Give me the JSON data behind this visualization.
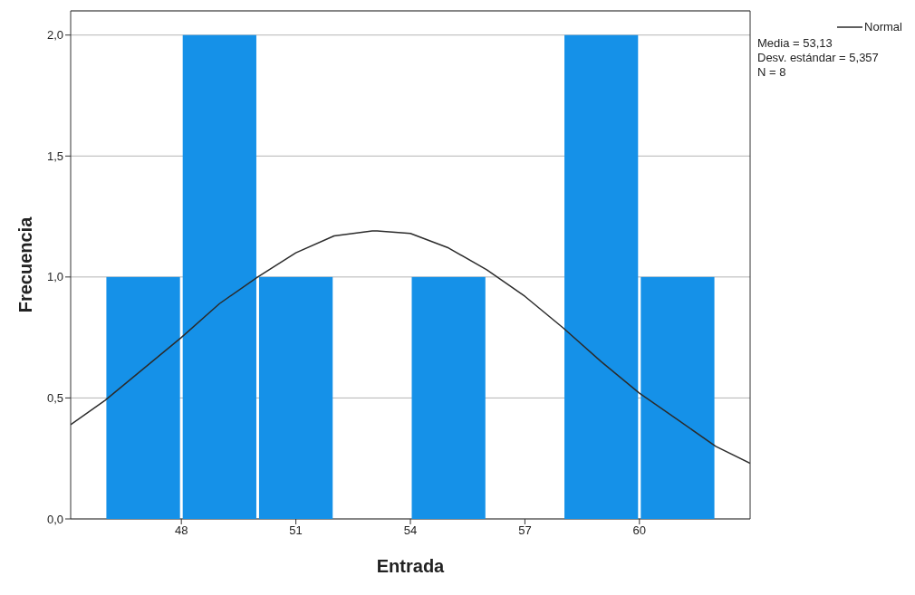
{
  "chart_data": {
    "type": "histogram",
    "xlabel": "Entrada",
    "ylabel": "Frecuencia",
    "bins": [
      46,
      48,
      50,
      52,
      54,
      56,
      58,
      60,
      62
    ],
    "values": [
      1,
      2,
      1,
      0,
      1,
      0,
      2,
      1
    ],
    "color": "#1591e8",
    "series": [
      {
        "name": "Normal",
        "type": "line",
        "color": "#2b2b2b",
        "x": [
          45.1,
          46,
          47,
          48,
          49,
          50,
          51,
          52,
          53,
          53.13,
          54,
          55,
          56,
          57,
          58,
          59,
          60,
          61,
          62,
          62.9
        ],
        "values": [
          0.39,
          0.49,
          0.62,
          0.75,
          0.89,
          1.0,
          1.1,
          1.17,
          1.19,
          1.19,
          1.18,
          1.12,
          1.03,
          0.92,
          0.79,
          0.65,
          0.52,
          0.41,
          0.3,
          0.23
        ]
      }
    ],
    "marker": "none",
    "line_style": "solid",
    "xlim": [
      45.1,
      62.9
    ],
    "xticks": [
      48,
      51,
      54,
      57,
      60
    ],
    "ylim": [
      0,
      2.1
    ],
    "yticks": [
      {
        "value": 0,
        "label": "0,0"
      },
      {
        "value": 0.5,
        "label": "0,5"
      },
      {
        "value": 1,
        "label": "1,0"
      },
      {
        "value": 1.5,
        "label": "1,5"
      },
      {
        "value": 2,
        "label": "2,0"
      }
    ],
    "grid": "y",
    "legend": "top right",
    "annotations": [
      "Media = 53,13",
      "Desv. estándar = 5,357",
      "N = 8"
    ]
  }
}
